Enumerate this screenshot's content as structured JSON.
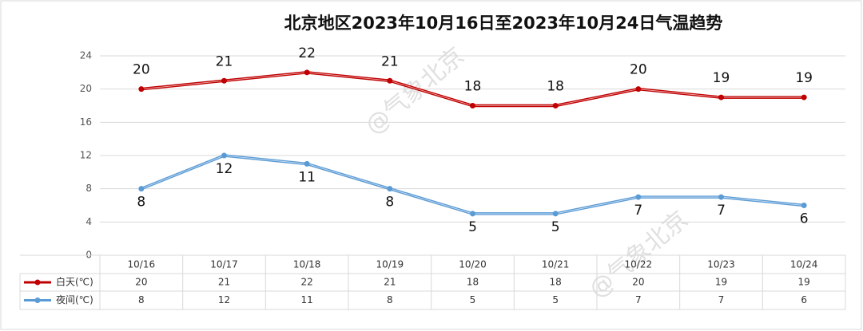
{
  "chart_data": {
    "type": "line",
    "title": "北京地区2023年10月16日至2023年10月24日气温趋势",
    "watermark": "@气象北京",
    "categories": [
      "10/16",
      "10/17",
      "10/18",
      "10/19",
      "10/20",
      "10/21",
      "10/22",
      "10/23",
      "10/24"
    ],
    "series": [
      {
        "name": "白天(℃)",
        "color": "#c00000",
        "values": [
          20,
          21,
          22,
          21,
          18,
          18,
          20,
          19,
          19
        ]
      },
      {
        "name": "夜间(℃)",
        "color": "#5b9bd5",
        "values": [
          8,
          12,
          11,
          8,
          5,
          5,
          7,
          7,
          6
        ]
      }
    ],
    "ylim": [
      0,
      24
    ],
    "yticks": [
      0,
      4,
      8,
      12,
      16,
      20,
      24
    ],
    "grid": true
  }
}
